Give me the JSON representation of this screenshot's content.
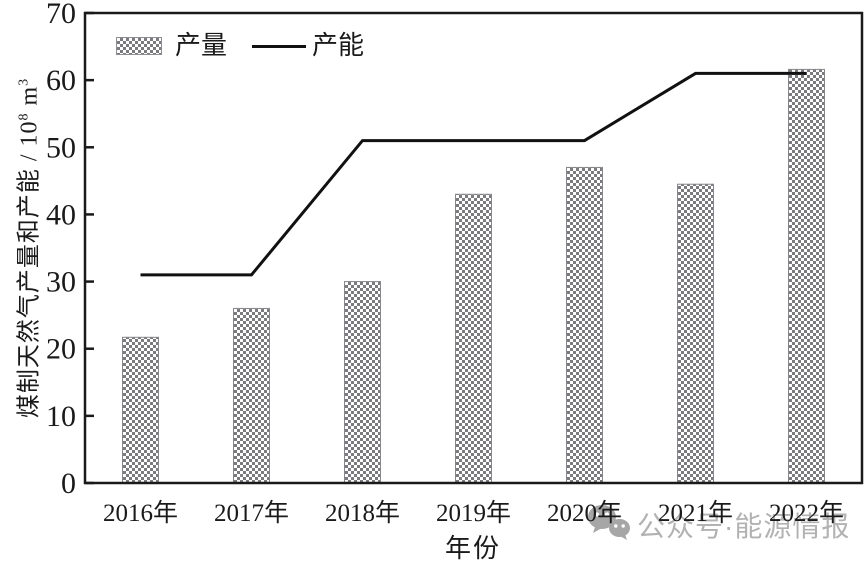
{
  "legend": {
    "production_label": "产量",
    "capacity_label": "产能"
  },
  "axes": {
    "x_title": "年份",
    "y_title_parts": {
      "main": "煤制天然气产量和产能 / 10",
      "exp": "8",
      "unit": " m",
      "unit_exp": "3"
    }
  },
  "watermark": {
    "icon": "wechat-icon",
    "text": "公众号·能源情报"
  },
  "chart_data": {
    "type": "bar",
    "title": "",
    "categories": [
      "2016年",
      "2017年",
      "2018年",
      "2019年",
      "2020年",
      "2021年",
      "2022年"
    ],
    "series": [
      {
        "name": "产量",
        "kind": "bar",
        "values": [
          21.7,
          26,
          30,
          43,
          47,
          44.5,
          61.6
        ]
      },
      {
        "name": "产能",
        "kind": "line",
        "values": [
          31,
          31,
          51,
          51,
          51,
          61,
          61
        ]
      }
    ],
    "xlabel": "年份",
    "ylabel": "煤制天然气产量和产能 / 10^8 m^3",
    "ylim": [
      0,
      70
    ],
    "yticks": [
      0,
      10,
      20,
      30,
      40,
      50,
      60,
      70
    ],
    "grid": false,
    "legend_position": "upper-left-inside",
    "frame": "full-box",
    "bar_color": "#7b7b7f",
    "bar_edge_color": "#87878b",
    "line_color": "#111111",
    "frame_color": "#1a1a1a",
    "watermark_color": "#b2b2b2"
  }
}
